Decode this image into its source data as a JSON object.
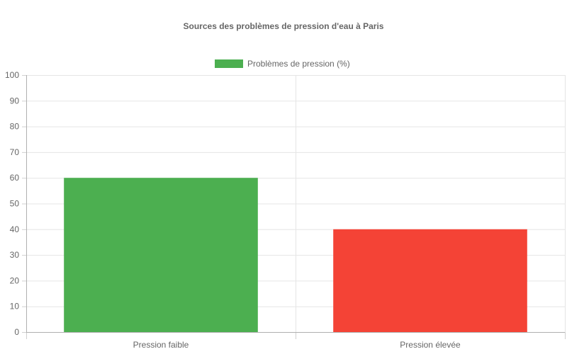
{
  "chart_data": {
    "type": "bar",
    "title": "Sources des problèmes de pression d'eau à Paris",
    "categories": [
      "Pression faible",
      "Pression élevée"
    ],
    "series": [
      {
        "name": "Problèmes de pression (%)",
        "values": [
          60,
          40
        ],
        "colors": [
          "#4caf50",
          "#f44336"
        ]
      }
    ],
    "legend_color": "#4caf50",
    "legend_position": "top",
    "ylim": [
      0,
      100
    ],
    "y_ticks": [
      0,
      10,
      20,
      30,
      40,
      50,
      60,
      70,
      80,
      90,
      100
    ],
    "grid": true,
    "xlabel": "",
    "ylabel": ""
  }
}
